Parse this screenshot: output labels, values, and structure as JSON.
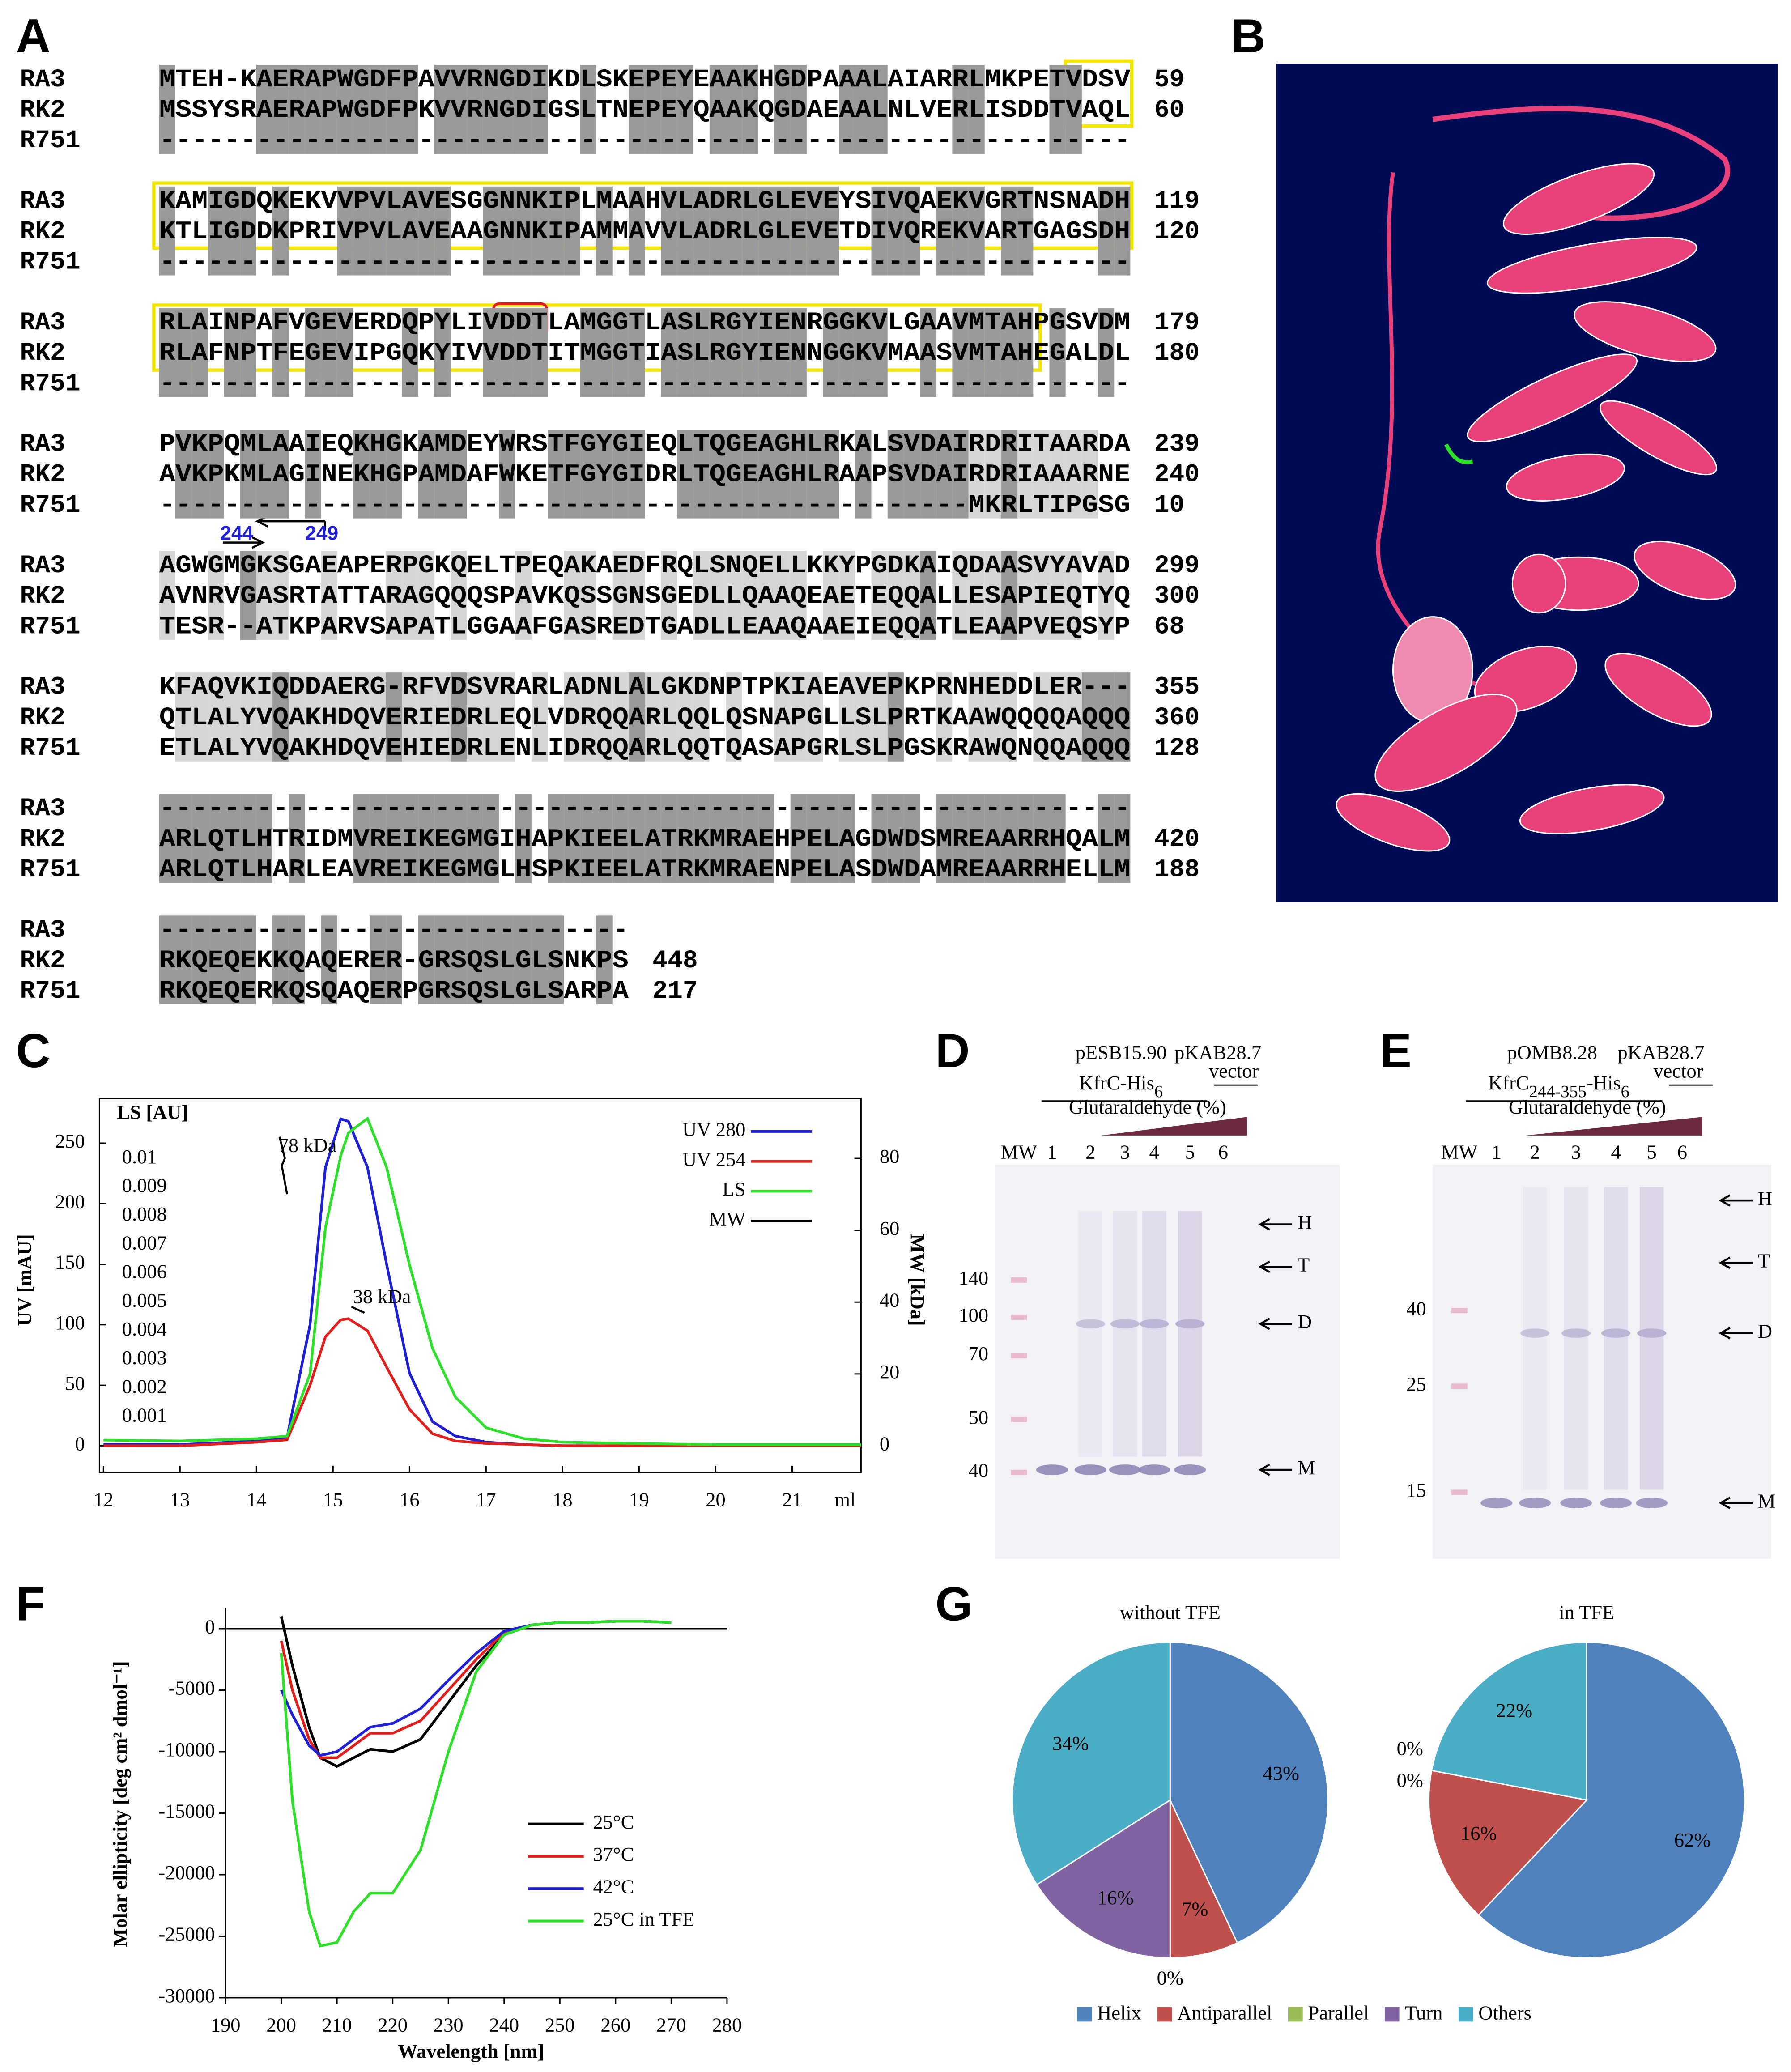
{
  "panel_labels": [
    "A",
    "B",
    "C",
    "D",
    "E",
    "F",
    "G"
  ],
  "alignment": {
    "blocks": [
      {
        "rows": [
          {
            "name": "RA3",
            "seq": "MTEH-KAERAPWGDFPAVVRNGDIKDLSKEPEYEAAKHGDPAAALAIARRLMKPETVDSV",
            "end": 59
          },
          {
            "name": "RK2",
            "seq": "MSSYSRAERAPWGDFPKVVRNGDIGSLTNEPEYQAAKQGDAEAALNLVERLISDDTVAQL",
            "end": 60
          },
          {
            "name": "R751",
            "seq": "------------------------------------------------------------"
          }
        ]
      },
      {
        "rows": [
          {
            "name": "RA3",
            "seq": "KAMIGDQKEKVVPVLAVESGGNNKIPLMAAHVLADRLGLEVEYSIVQAEKVGRTNSNADH",
            "end": 119
          },
          {
            "name": "RK2",
            "seq": "KTLIGDDKPRIVPVLAVEAAGNNKIPAMMAVVLADRLGLEVETDIVQREKVARTGAGSDH",
            "end": 120
          },
          {
            "name": "R751",
            "seq": "------------------------------------------------------------"
          }
        ]
      },
      {
        "rows": [
          {
            "name": "RA3",
            "seq": "RLAINPAFVGEVERDQPYLIVDDTLAMGGTLASLRGYIENRGGKVLGAAVMTAHPGSVDM",
            "end": 179
          },
          {
            "name": "RK2",
            "seq": "RLAFNPTFEGEVIPGQKYIVVDDTITMGGTIASLRGYIENNGGKVMAASVMTAHEGALDL",
            "end": 180
          },
          {
            "name": "R751",
            "seq": "------------------------------------------------------------"
          }
        ]
      },
      {
        "rows": [
          {
            "name": "RA3",
            "seq": "PVKPQMLAAIEQKHGKAMDEYWRSTFGYGIEQLTQGEAGHLRKALSVDAIRDRITAARDA",
            "end": 239
          },
          {
            "name": "RK2",
            "seq": "AVKPKMLAGINEKHGPAMDAFWKETFGYGIDRLTQGEAGHLRAAPSVDAIRDRIAAARNE",
            "end": 240
          },
          {
            "name": "R751",
            "seq": "--------------------------------------------------MKRLTIPGSG",
            "end": 10
          }
        ]
      },
      {
        "rows": [
          {
            "name": "RA3",
            "seq": "AGWGMGKSGAEAPERPGKQELTPEQAKAEDFRQLSNQELLKKYPGDKAIQDAASVYAVAD",
            "end": 299
          },
          {
            "name": "RK2",
            "seq": "AVNRVGASRTATTARAGQQQSPAVKQSSGNSGEDLLQAAQEAETEQQALLESAPIEQTYQ",
            "end": 300
          },
          {
            "name": "R751",
            "seq": "TESR--ATKPARVSAPATLGGAAFGASREDTGADLLEAAQAAEIEQQATLEAAPVEQSYP",
            "end": 68
          }
        ]
      },
      {
        "rows": [
          {
            "name": "RA3",
            "seq": "KFAQVKIQDDAERG-RFVDSVRARLADNLALGKDNPTPKIAEAVEPKPRNHEDDLER---",
            "end": 355
          },
          {
            "name": "RK2",
            "seq": "QTLALYVQAKHDQVERIEDRLEQLVDRQQARLQQLQSNAPGLLSLPRTKAAWQQQQAQQQ",
            "end": 360
          },
          {
            "name": "R751",
            "seq": "ETLALYVQAKHDQVEHIEDRLENLIDRQQARLQQTQASAPGRLSLPGSKRAWQNQQAQQQ",
            "end": 128
          }
        ]
      },
      {
        "rows": [
          {
            "name": "RA3",
            "seq": "------------------------------------------------------------"
          },
          {
            "name": "RK2",
            "seq": "ARLQTLHTRIDMVREIKEGMGIHAPKIEELATRKMRAEHPELAGDWDSMREAARRHQALM",
            "end": 420
          },
          {
            "name": "R751",
            "seq": "ARLQTLHARLEAVREIKEGMGLHSPKIEELATRKMRAENPELASDWDAMREAARRHELLM",
            "end": 188
          }
        ]
      },
      {
        "rows": [
          {
            "name": "RA3",
            "seq": "-----------------------------"
          },
          {
            "name": "RK2",
            "seq": "RKQEQEKKQAQERER-GRSQSLGLSNKPS",
            "end": 448
          },
          {
            "name": "R751",
            "seq": "RKQEQERKQSQAQERPGRSQSLGLSARPA",
            "end": 217
          }
        ]
      }
    ],
    "annotations": [
      "244",
      "249"
    ]
  },
  "gels": [
    {
      "plasmid": "pESB15.90",
      "construct": [
        "KfrC-His",
        "6"
      ],
      "vector_plasmid": "pKAB28.7",
      "vector": "vector",
      "gradient": "Glutaraldehyde (%)",
      "lanes": [
        "MW",
        "1",
        "2",
        "3",
        "4",
        "5",
        "6"
      ],
      "mw": [
        140,
        100,
        70,
        50,
        40
      ],
      "bands": [
        "H",
        "T",
        "D",
        "M"
      ]
    },
    {
      "plasmid": "pOMB8.28",
      "construct": [
        "KfrC",
        "244-355",
        "-His",
        "6"
      ],
      "vector_plasmid": "pKAB28.7",
      "vector": "vector",
      "gradient": "Glutaraldehyde (%)",
      "lanes": [
        "MW",
        "1",
        "2",
        "3",
        "4",
        "5",
        "6"
      ],
      "mw": [
        40,
        25,
        15
      ],
      "bands": [
        "H",
        "T",
        "D",
        "M"
      ]
    }
  ],
  "chart_data": [
    {
      "type": "line",
      "y_label": "UV [mAU]",
      "y2_label": "MW [kDa]",
      "x_label": "ml",
      "ls_label": "LS [AU]",
      "xlim": [
        12,
        21.9
      ],
      "xticks": [
        12,
        13,
        14,
        15,
        16,
        17,
        18,
        19,
        20,
        21
      ],
      "ylim": [
        -22,
        287
      ],
      "yticks": [
        0,
        50,
        100,
        150,
        200,
        250
      ],
      "y2lim": [
        -7.4,
        96.7
      ],
      "y2ticks": [
        0,
        20,
        40,
        60,
        80
      ],
      "y3lim": [
        -0.000925,
        0.0121
      ],
      "y3ticks": [
        0.01,
        0.009,
        0.008,
        0.007,
        0.006,
        0.005,
        0.004,
        0.003,
        0.002,
        0.001
      ],
      "annotations": [
        "78 kDa",
        "38 kDa"
      ],
      "x": [
        12,
        13,
        14,
        14.4,
        14.7,
        14.9,
        15.1,
        15.2,
        15.45,
        15.7,
        16,
        16.3,
        16.6,
        17,
        17.5,
        18,
        19,
        20,
        21,
        21.9
      ],
      "series": [
        {
          "name": "UV 280",
          "color": "#1f1fd6",
          "values": [
            1,
            1,
            4,
            7,
            100,
            230,
            270,
            268,
            230,
            150,
            60,
            20,
            8,
            3,
            1,
            0,
            0,
            0,
            0,
            0
          ]
        },
        {
          "name": "UV 254",
          "color": "#e0201c",
          "values": [
            0,
            0,
            3,
            5,
            50,
            90,
            104,
            105,
            95,
            65,
            30,
            10,
            4,
            2,
            1,
            0,
            0,
            0,
            0,
            0
          ]
        },
        {
          "name": "LS",
          "color": "#2ee02a",
          "axis": "y3",
          "values": [
            0.0002,
            0.00017,
            0.00025,
            0.00034,
            0.0025,
            0.0076,
            0.0101,
            0.0109,
            0.0114,
            0.0097,
            0.0063,
            0.0034,
            0.0017,
            0.00063,
            0.00025,
            0.00013,
            8e-05,
            4e-05,
            4e-05,
            4e-05
          ]
        },
        {
          "name": "MW",
          "color": "#000000",
          "axis": "y2",
          "x": [
            14.3,
            14.37,
            14.33,
            14.4,
            14.8,
            15.24,
            15.41
          ],
          "values": [
            86,
            80,
            78,
            70,
            null,
            38.7,
            37
          ]
        }
      ]
    },
    {
      "type": "line",
      "x_label": "Wavelength [nm]",
      "y_label": "Molar ellipticity [deg cm² dmol⁻¹]",
      "xlim": [
        190,
        280
      ],
      "xticks": [
        190,
        200,
        210,
        220,
        230,
        240,
        250,
        260,
        270,
        280
      ],
      "ylim": [
        -30000,
        1700
      ],
      "yticks": [
        0,
        -5000,
        -10000,
        -15000,
        -20000,
        -25000,
        -30000
      ],
      "x": [
        200,
        202,
        205,
        207,
        210,
        213,
        216,
        220,
        225,
        230,
        235,
        240,
        245,
        250,
        255,
        260,
        265,
        270
      ],
      "series": [
        {
          "name": "25°C",
          "color": "#000000",
          "values": [
            1000,
            -3000,
            -8000,
            -10500,
            -11200,
            -10500,
            -9800,
            -10000,
            -9000,
            -6000,
            -3000,
            -500,
            300,
            500,
            500,
            600,
            600,
            500
          ]
        },
        {
          "name": "37°C",
          "color": "#e0201c",
          "values": [
            -1000,
            -5000,
            -9000,
            -10500,
            -10500,
            -9500,
            -8500,
            -8500,
            -7500,
            -5000,
            -2500,
            -300,
            300,
            500,
            500,
            600,
            600,
            500
          ]
        },
        {
          "name": "42°C",
          "color": "#1f1fd6",
          "values": [
            -5000,
            -7000,
            -9500,
            -10300,
            -10000,
            -9000,
            -8000,
            -7700,
            -6500,
            -4200,
            -2000,
            -200,
            300,
            500,
            500,
            600,
            600,
            500
          ]
        },
        {
          "name": "25°C in TFE",
          "color": "#2ee02a",
          "values": [
            -2000,
            -14000,
            -23000,
            -25800,
            -25500,
            -23000,
            -21500,
            -21500,
            -18000,
            -10000,
            -3500,
            -500,
            300,
            500,
            500,
            600,
            600,
            500
          ]
        }
      ]
    },
    {
      "type": "pie",
      "title": "without TFE",
      "categories": [
        "Helix",
        "Antiparallel",
        "Parallel",
        "Turn",
        "Others"
      ],
      "colors": [
        "#4f81bd",
        "#c0504d",
        "#9bbb59",
        "#8064a2",
        "#4bacc6"
      ],
      "values": [
        43,
        7,
        0,
        16,
        34
      ],
      "value_labels": [
        "43%",
        "7%",
        "0%",
        "16%",
        "34%"
      ]
    },
    {
      "type": "pie",
      "title": "in TFE",
      "categories": [
        "Helix",
        "Antiparallel",
        "Parallel",
        "Turn",
        "Others"
      ],
      "colors": [
        "#4f81bd",
        "#c0504d",
        "#9bbb59",
        "#8064a2",
        "#4bacc6"
      ],
      "values": [
        62,
        16,
        0,
        0,
        22
      ],
      "value_labels": [
        "62%",
        "16%",
        "0%",
        "0%",
        "22%"
      ]
    }
  ]
}
